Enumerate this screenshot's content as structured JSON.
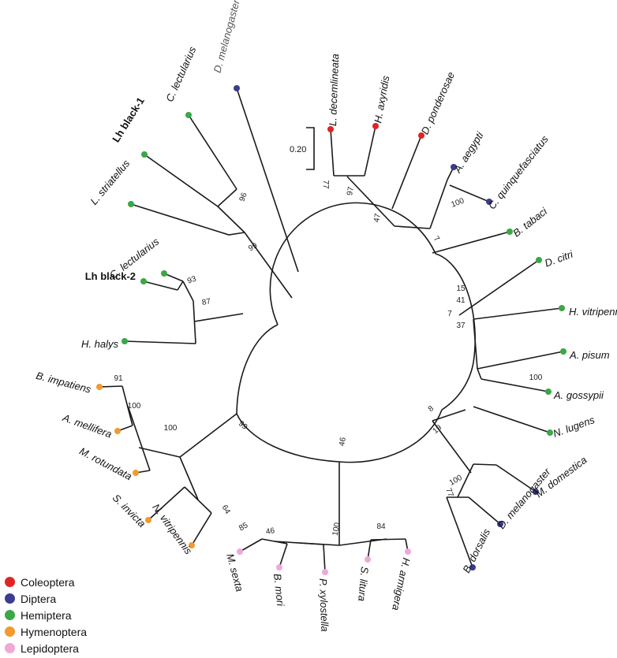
{
  "scale_bar": {
    "label": "0.20"
  },
  "legend": [
    {
      "key": "coleoptera",
      "label": "Coleoptera",
      "color": "#e02424"
    },
    {
      "key": "diptera",
      "label": "Diptera",
      "color": "#3b3b8f"
    },
    {
      "key": "hemiptera",
      "label": "Hemiptera",
      "color": "#3aa845"
    },
    {
      "key": "hymenoptera",
      "label": "Hymenoptera",
      "color": "#f29a2e"
    },
    {
      "key": "lepidoptera",
      "label": "Lepidoptera",
      "color": "#f0a8d8"
    }
  ],
  "taxa": [
    {
      "label": "D. melanogaster",
      "order": "diptera"
    },
    {
      "label": "C. lectularius",
      "order": "hemiptera"
    },
    {
      "label": "Lh black-1",
      "order": "hemiptera"
    },
    {
      "label": "L. striatellus",
      "order": "hemiptera"
    },
    {
      "label": "C. lectularius",
      "order": "hemiptera"
    },
    {
      "label": "Lh black-2",
      "order": "hemiptera"
    },
    {
      "label": "H. halys",
      "order": "hemiptera"
    },
    {
      "label": "B. impatiens",
      "order": "hymenoptera"
    },
    {
      "label": "A. mellifera",
      "order": "hymenoptera"
    },
    {
      "label": "M. rotundata",
      "order": "hymenoptera"
    },
    {
      "label": "S. invicta",
      "order": "hymenoptera"
    },
    {
      "label": "N. vitripennis",
      "order": "hymenoptera"
    },
    {
      "label": "M. sexta",
      "order": "lepidoptera"
    },
    {
      "label": "B. mori",
      "order": "lepidoptera"
    },
    {
      "label": "P. xylostella",
      "order": "lepidoptera"
    },
    {
      "label": "S. litura",
      "order": "lepidoptera"
    },
    {
      "label": "H. armigera",
      "order": "lepidoptera"
    },
    {
      "label": "B. dorsalis",
      "order": "diptera"
    },
    {
      "label": "D. melanogaster",
      "order": "diptera"
    },
    {
      "label": "M. domestica",
      "order": "diptera"
    },
    {
      "label": "N. lugens",
      "order": "hemiptera"
    },
    {
      "label": "A. gossypii",
      "order": "hemiptera"
    },
    {
      "label": "A. pisum",
      "order": "hemiptera"
    },
    {
      "label": "H. vitripennis",
      "order": "hemiptera"
    },
    {
      "label": "D. citri",
      "order": "hemiptera"
    },
    {
      "label": "B. tabaci",
      "order": "hemiptera"
    },
    {
      "label": "C. quinquefasciatus",
      "order": "diptera"
    },
    {
      "label": "A. aegypti",
      "order": "diptera"
    },
    {
      "label": "D. ponderosae",
      "order": "coleoptera"
    },
    {
      "label": "H. axyridis",
      "order": "coleoptera"
    },
    {
      "label": "L. decemlineata",
      "order": "coleoptera"
    }
  ],
  "support_values": [
    "96",
    "99",
    "93",
    "87",
    "91",
    "100",
    "100",
    "99",
    "64",
    "85",
    "46",
    "100",
    "84",
    "46",
    "77",
    "100",
    "19",
    "8",
    "100",
    "37",
    "41",
    "15",
    "7",
    "7",
    "100",
    "47",
    "97",
    "77"
  ]
}
